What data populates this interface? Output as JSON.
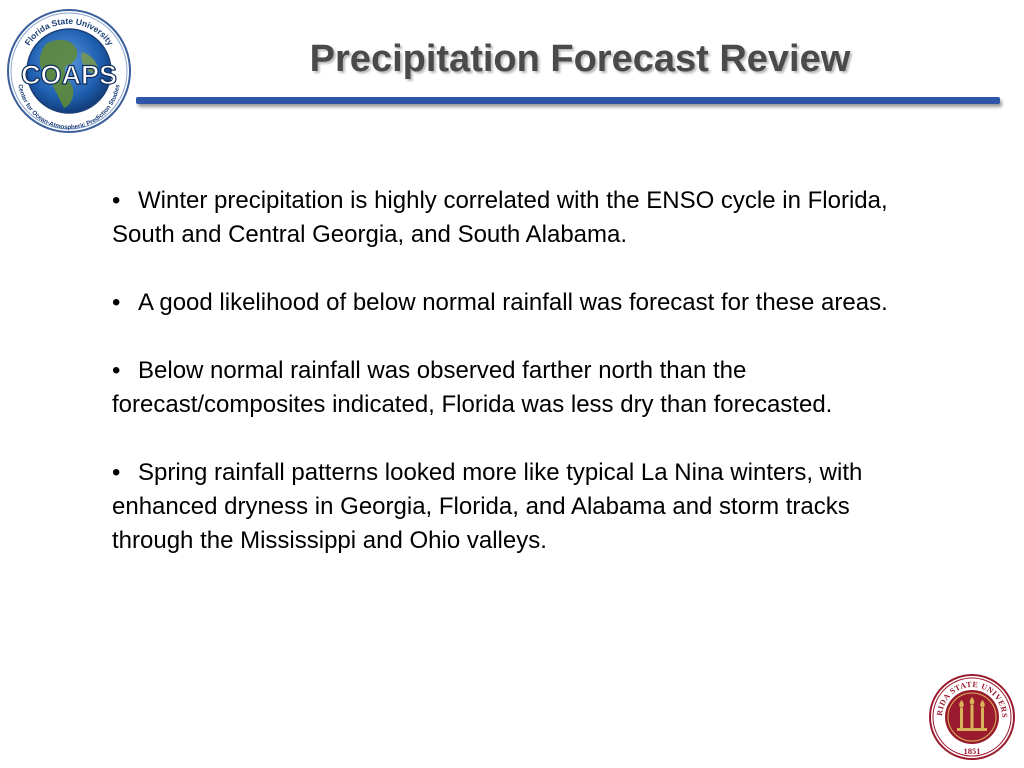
{
  "slide": {
    "title": "Precipitation Forecast Review",
    "accent_color": "#2f55a8",
    "title_color": "#4a4a4a"
  },
  "logo": {
    "icon": "coaps-globe-logo",
    "name": "COAPS",
    "top_arc": "Florida State University",
    "bottom_arc": "Center for Ocean-Atmospheric Prediction Studies"
  },
  "bullets": [
    {
      "mark": "•",
      "text": "Winter precipitation is highly correlated with the ENSO cycle in Florida, South and Central Georgia, and South Alabama."
    },
    {
      "mark": "•",
      "text": "A good likelihood of below normal rainfall was forecast for these areas."
    },
    {
      "mark": "•",
      "text": "Below normal rainfall was observed farther north than the forecast/composites indicated, Florida was less dry than forecasted."
    },
    {
      "mark": "•",
      "text": "Spring rainfall patterns looked more like typical La Nina winters, with enhanced dryness in Georgia, Florida, and Alabama and storm tracks through the Mississippi and Ohio valleys."
    }
  ],
  "seal": {
    "icon": "fsu-seal-icon",
    "ring_text": "FLORIDA STATE UNIVERSITY",
    "year": "1851",
    "color": "#9b1b2e"
  }
}
